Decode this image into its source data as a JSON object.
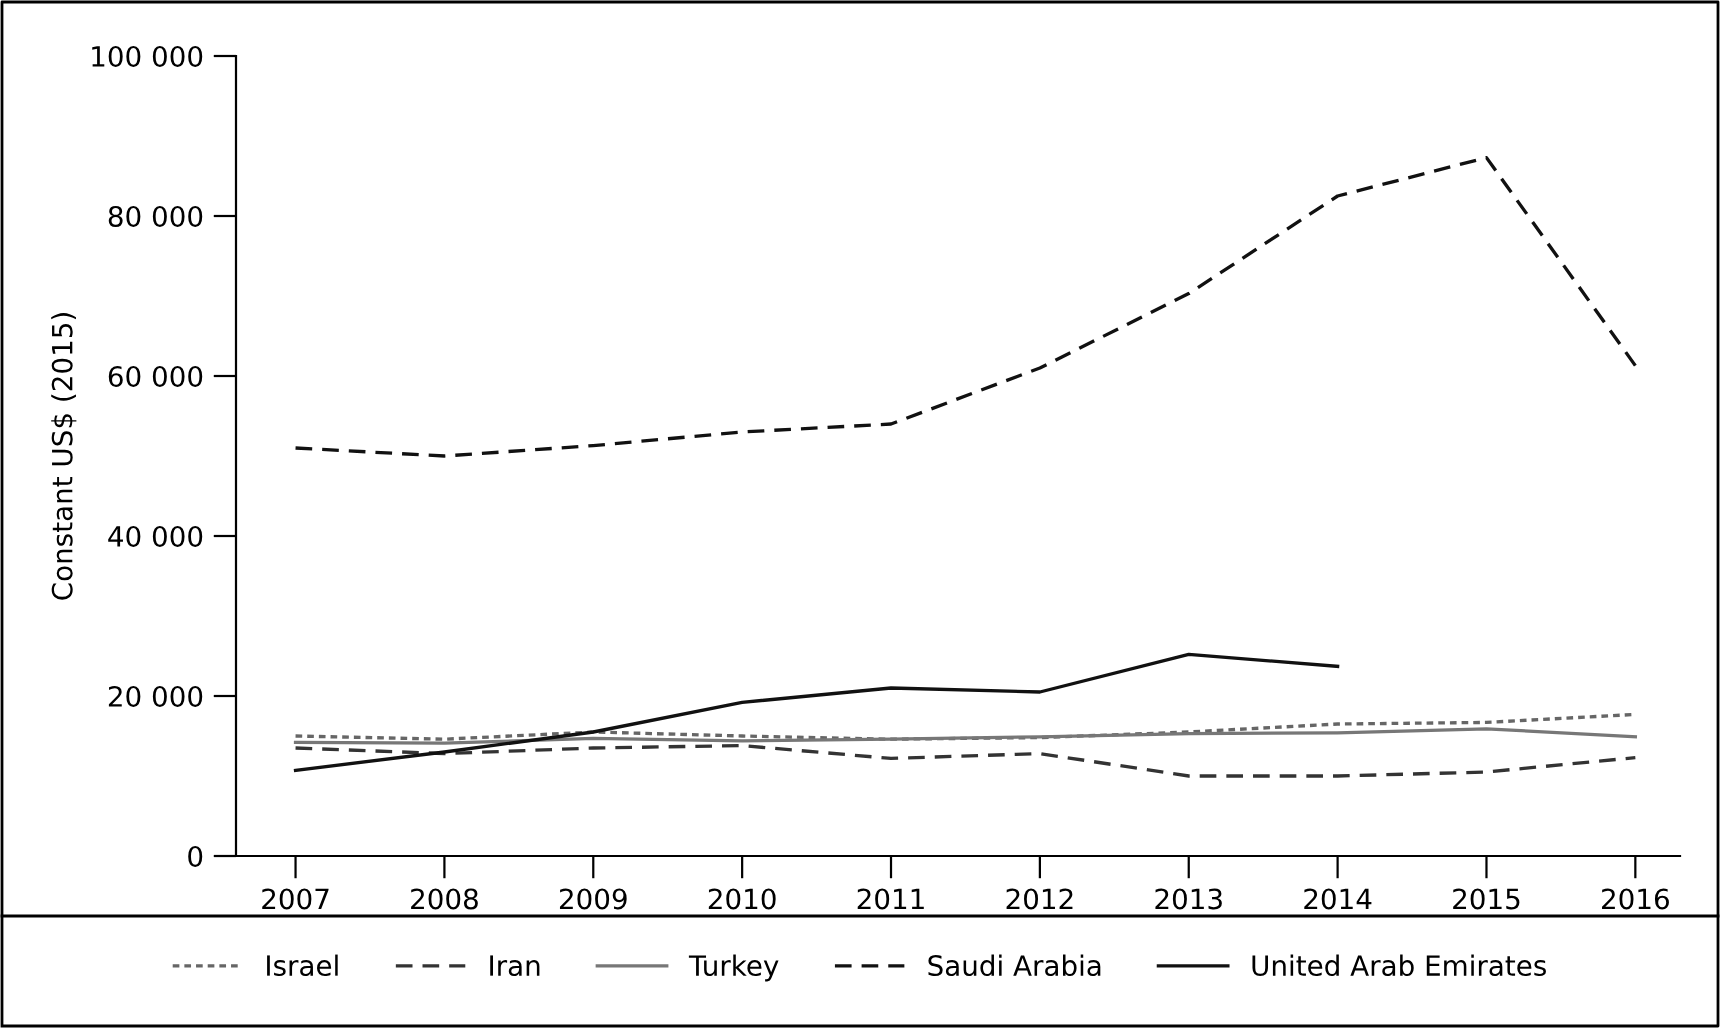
{
  "chart_data": {
    "type": "line",
    "ylabel": "Constant US$ (2015)",
    "x": [
      2007,
      2008,
      2009,
      2010,
      2011,
      2012,
      2013,
      2014,
      2015,
      2016
    ],
    "xlim": [
      2006.6,
      2016.3
    ],
    "xticks": [
      2007,
      2008,
      2009,
      2010,
      2011,
      2012,
      2013,
      2014,
      2015,
      2016
    ],
    "ylim": [
      0,
      100000
    ],
    "yticks": [
      {
        "value": 0,
        "label": "0"
      },
      {
        "value": 20000,
        "label": "20 000"
      },
      {
        "value": 40000,
        "label": "40 000"
      },
      {
        "value": 60000,
        "label": "60 000"
      },
      {
        "value": 80000,
        "label": "80 000"
      },
      {
        "value": 100000,
        "label": "100 000"
      }
    ],
    "grid": false,
    "legend": "bottom",
    "marker": "none",
    "series": [
      {
        "name": "Israel",
        "color": "#666666",
        "line_style": "dotted",
        "values": [
          15000,
          14600,
          15500,
          15000,
          14600,
          14800,
          15500,
          16500,
          16700,
          17700
        ]
      },
      {
        "name": "Iran",
        "color": "#333333",
        "line_style": "dashed",
        "values": [
          13500,
          12800,
          13500,
          13800,
          12200,
          12800,
          10000,
          10000,
          10500,
          12300
        ]
      },
      {
        "name": "Turkey",
        "color": "#777777",
        "line_style": "solid",
        "values": [
          14200,
          14100,
          14700,
          14400,
          14600,
          14900,
          15300,
          15400,
          15900,
          14900
        ]
      },
      {
        "name": "Saudi Arabia",
        "color": "#111111",
        "line_style": "dashed",
        "values": [
          51000,
          50000,
          51300,
          53000,
          54000,
          61000,
          70300,
          82500,
          87300,
          61300
        ]
      },
      {
        "name": "United Arab Emirates",
        "color": "#111111",
        "line_style": "solid",
        "values": [
          10700,
          13000,
          15500,
          19200,
          21000,
          20500,
          25200,
          23700,
          null,
          null
        ]
      }
    ]
  }
}
